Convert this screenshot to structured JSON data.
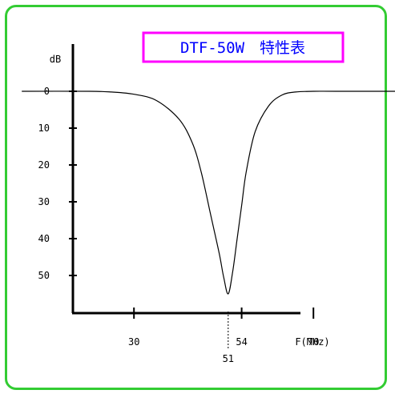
{
  "chart_data": {
    "type": "line",
    "title": "DTF-50W　特性表",
    "xlabel": "F(MHz)",
    "ylabel": "dB",
    "y_ticks": [
      "0",
      "10",
      "20",
      "30",
      "40",
      "50"
    ],
    "y_tick_values": [
      0,
      10,
      20,
      30,
      40,
      50
    ],
    "x_ticks": [
      "30",
      "51",
      "54",
      "70"
    ],
    "x_tick_values": [
      30,
      51,
      54,
      70
    ],
    "ylim": [
      0,
      60
    ],
    "y_inverted": true,
    "series": [
      {
        "x": [
          5,
          20,
          25,
          30,
          35,
          40,
          43,
          45,
          47,
          49,
          50,
          51,
          52,
          53,
          54,
          55,
          57,
          60,
          63,
          66,
          70,
          75,
          90,
          115
        ],
        "values": [
          0,
          0,
          0.2,
          0.8,
          2.5,
          7.5,
          14,
          22,
          33,
          44,
          50.5,
          55,
          49,
          40,
          31,
          22,
          11,
          4,
          1,
          0.2,
          0,
          0,
          0,
          0
        ]
      }
    ],
    "colors": {
      "line": "#000000",
      "title": "#0000ff",
      "title_border": "#ff00ff",
      "frame": "#33cc33"
    }
  }
}
